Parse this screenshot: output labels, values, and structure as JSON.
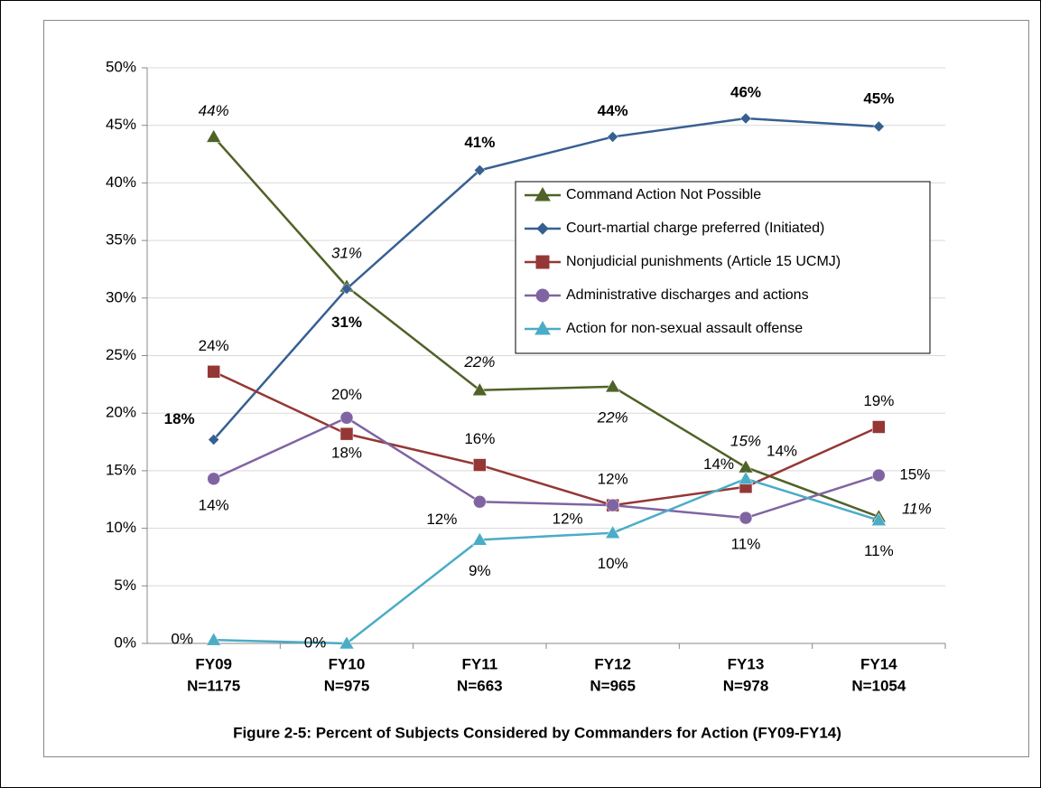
{
  "chart_data": {
    "type": "line",
    "title": "Figure 2-5: Percent of Subjects Considered by Commanders for Action (FY09-FY14)",
    "categories": [
      "FY09",
      "FY10",
      "FY11",
      "FY12",
      "FY13",
      "FY14"
    ],
    "category_sublabels": [
      "N=1175",
      "N=975",
      "N=663",
      "N=965",
      "N=978",
      "N=1054"
    ],
    "ylim": [
      0,
      50
    ],
    "yticks": [
      {
        "value": 0,
        "label": "0%"
      },
      {
        "value": 5,
        "label": "5%"
      },
      {
        "value": 10,
        "label": "10%"
      },
      {
        "value": 15,
        "label": "15%"
      },
      {
        "value": 20,
        "label": "20%"
      },
      {
        "value": 25,
        "label": "25%"
      },
      {
        "value": 30,
        "label": "30%"
      },
      {
        "value": 35,
        "label": "35%"
      },
      {
        "value": 40,
        "label": "40%"
      },
      {
        "value": 45,
        "label": "45%"
      },
      {
        "value": 50,
        "label": "50%"
      }
    ],
    "grid": true,
    "series": [
      {
        "name": "Command Action Not Possible",
        "color": "#4f6228",
        "marker": "triangle",
        "values": [
          44,
          31,
          22,
          22.3,
          15.3,
          11
        ],
        "value_labels": [
          "44%",
          "31%",
          "22%",
          "22%",
          "15%",
          "11%"
        ]
      },
      {
        "name": "Court-martial charge preferred (Initiated)",
        "color": "#376092",
        "marker": "diamond",
        "values": [
          17.7,
          30.8,
          41.1,
          44,
          45.6,
          44.9
        ],
        "value_labels": [
          "18%",
          "31%",
          "41%",
          "44%",
          "46%",
          "45%"
        ]
      },
      {
        "name": "Nonjudicial punishments (Article 15 UCMJ)",
        "color": "#953735",
        "marker": "square",
        "values": [
          23.6,
          18.2,
          15.5,
          12,
          13.6,
          18.8
        ],
        "value_labels": [
          "24%",
          "18%",
          "16%",
          "12%",
          "14%",
          "19%"
        ]
      },
      {
        "name": "Administrative discharges and actions",
        "color": "#8064a2",
        "marker": "circle",
        "values": [
          14.3,
          19.6,
          12.3,
          12,
          10.9,
          14.6
        ],
        "value_labels": [
          "14%",
          "20%",
          "12%",
          "12%",
          "11%",
          "15%"
        ]
      },
      {
        "name": "Action for non-sexual assault offense",
        "color": "#4bacc6",
        "marker": "triangle",
        "values": [
          0.3,
          0,
          9,
          9.6,
          14.3,
          10.7
        ],
        "value_labels": [
          "0%",
          "0%",
          "9%",
          "10%",
          "14%",
          "11%"
        ]
      }
    ]
  }
}
